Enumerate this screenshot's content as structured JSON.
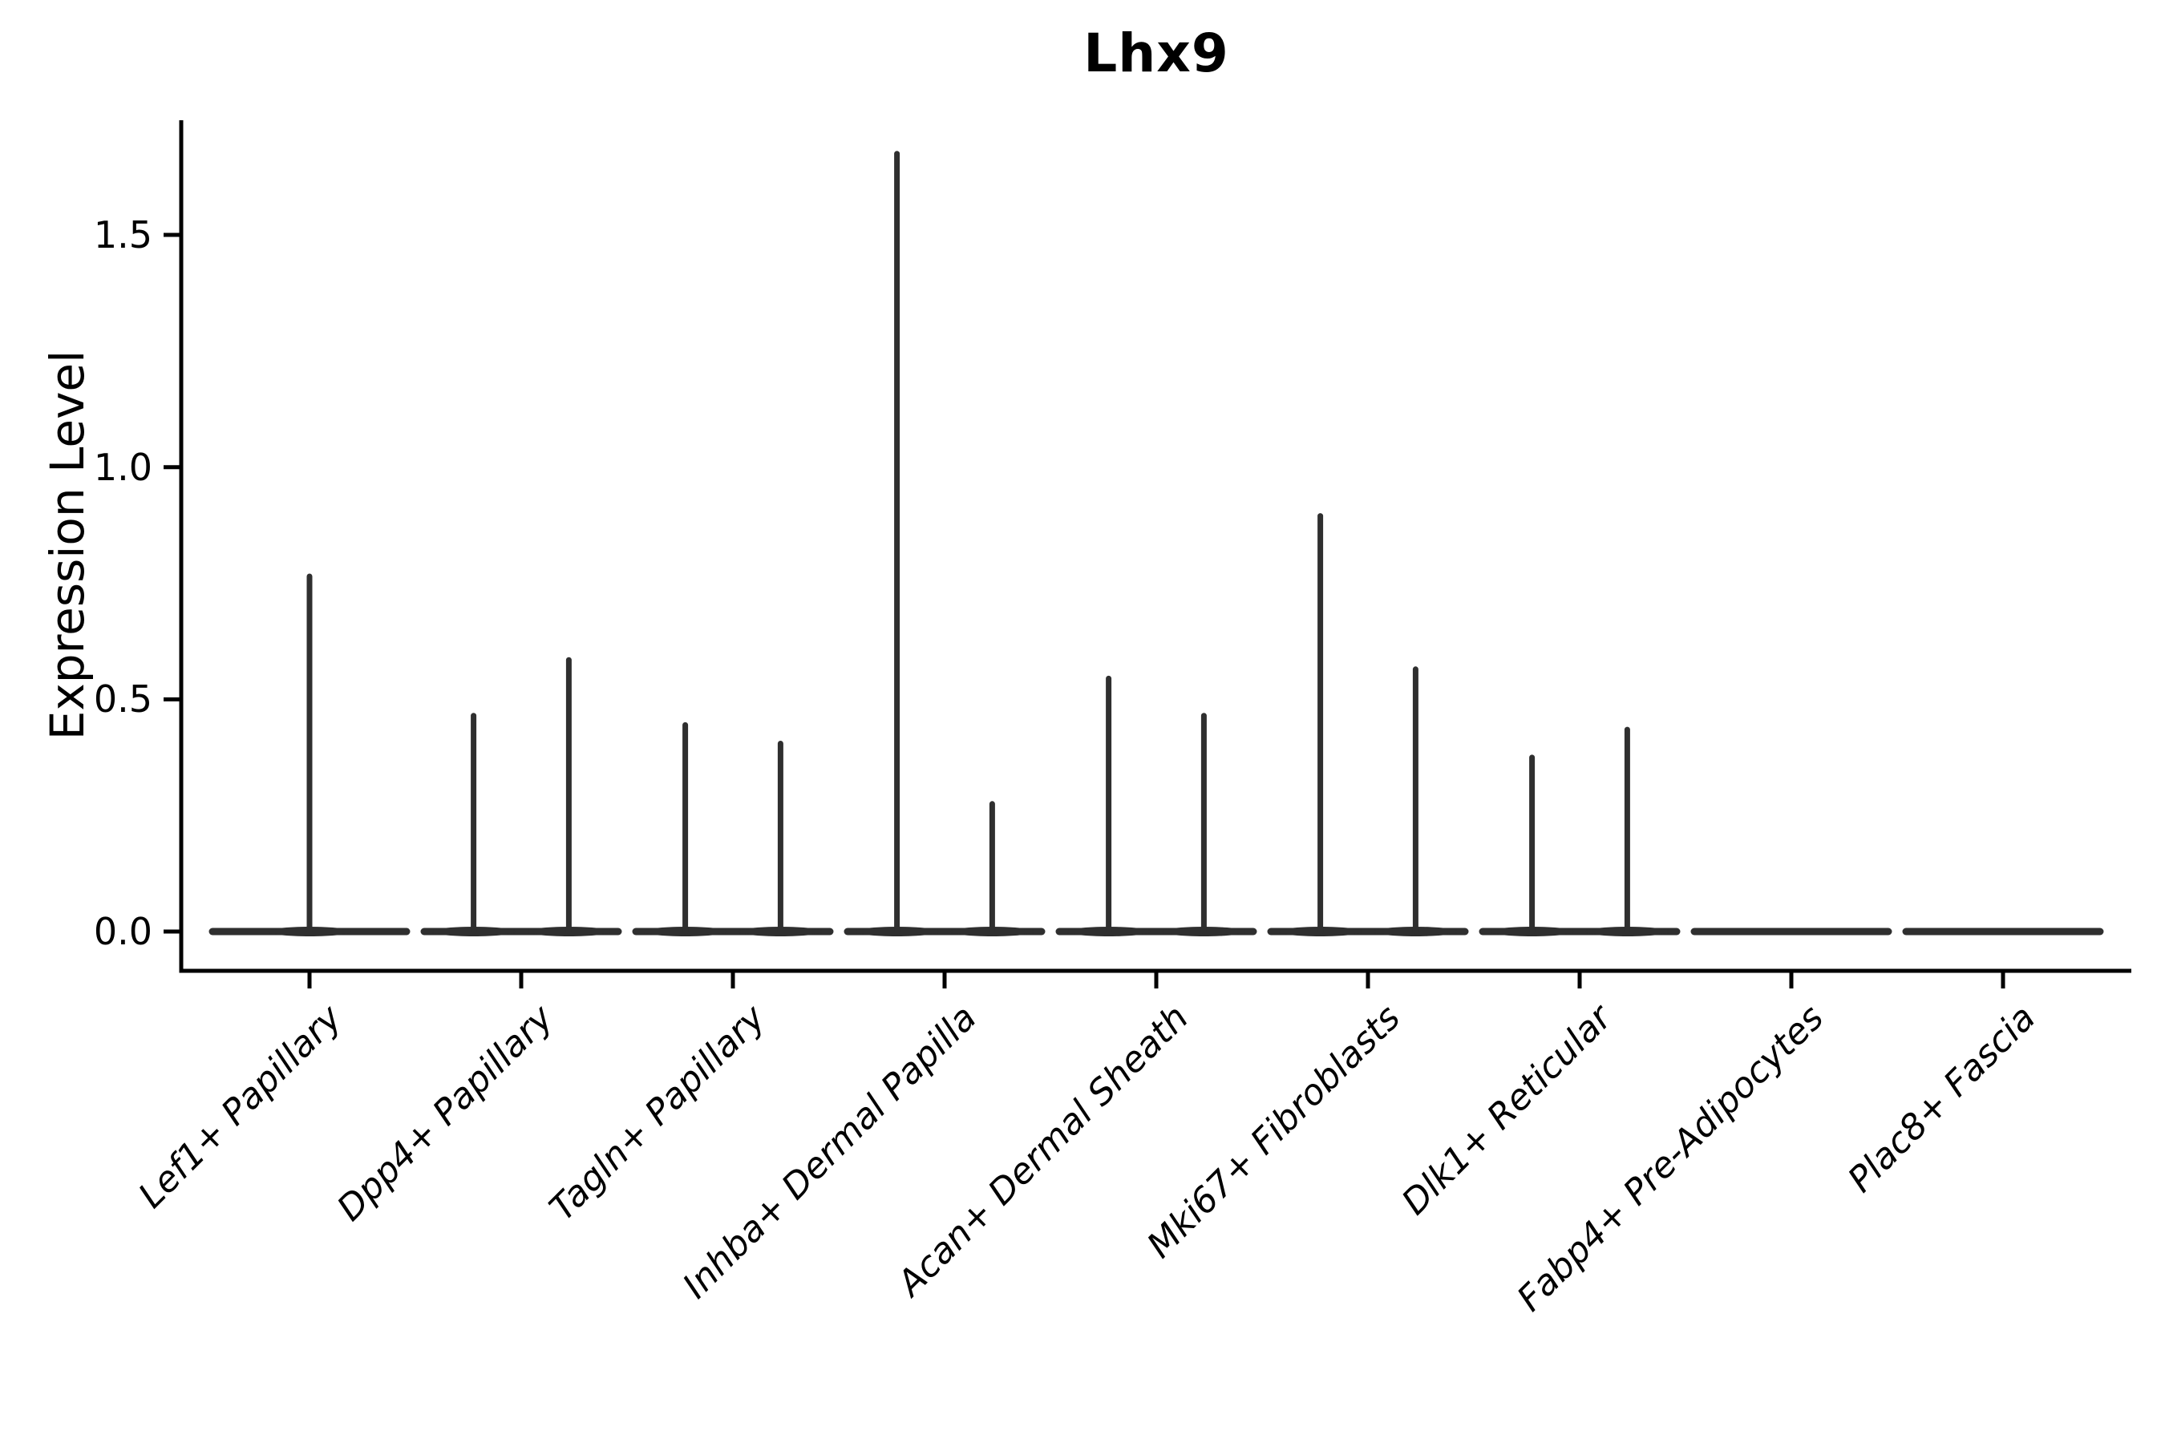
{
  "title": "Lhx9",
  "chart_data": {
    "type": "violin",
    "title": "Lhx9",
    "xlabel": "",
    "ylabel": "Expression Level",
    "yticks": [
      "0.0",
      "0.5",
      "1.0",
      "1.5"
    ],
    "ytick_values": [
      0.0,
      0.5,
      1.0,
      1.5
    ],
    "ylim": [
      -0.08,
      1.75
    ],
    "grid": false,
    "legend": null,
    "baseline_value": 0.0,
    "categories": [
      "Lef1+ Papillary",
      "Dpp4+ Papillary",
      "Tagln+ Papillary",
      "Inhba+ Dermal Papilla",
      "Acan+ Dermal Sheath",
      "Mki67+ Fibroblasts",
      "Dlk1+ Reticular",
      "Fabp4+ Pre-Adipocytes",
      "Plac8+ Fascia"
    ],
    "violins": [
      {
        "category": "Lef1+ Papillary",
        "spikes": [
          {
            "offset": 0.0,
            "max": 0.77
          }
        ]
      },
      {
        "category": "Dpp4+ Papillary",
        "spikes": [
          {
            "offset": -0.225,
            "max": 0.47
          },
          {
            "offset": 0.225,
            "max": 0.59
          }
        ]
      },
      {
        "category": "Tagln+ Papillary",
        "spikes": [
          {
            "offset": -0.225,
            "max": 0.45
          },
          {
            "offset": 0.225,
            "max": 0.41
          }
        ]
      },
      {
        "category": "Inhba+ Dermal Papilla",
        "spikes": [
          {
            "offset": -0.225,
            "max": 1.68
          },
          {
            "offset": 0.225,
            "max": 0.28
          }
        ]
      },
      {
        "category": "Acan+ Dermal Sheath",
        "spikes": [
          {
            "offset": -0.225,
            "max": 0.55
          },
          {
            "offset": 0.225,
            "max": 0.47
          }
        ]
      },
      {
        "category": "Mki67+ Fibroblasts",
        "spikes": [
          {
            "offset": -0.225,
            "max": 0.9
          },
          {
            "offset": 0.225,
            "max": 0.57
          }
        ]
      },
      {
        "category": "Dlk1+ Reticular",
        "spikes": [
          {
            "offset": -0.225,
            "max": 0.38
          },
          {
            "offset": 0.225,
            "max": 0.44
          }
        ]
      },
      {
        "category": "Fabp4+ Pre-Adipocytes",
        "spikes": []
      },
      {
        "category": "Plac8+ Fascia",
        "spikes": []
      }
    ],
    "colors": {
      "violin": "#2f2f2f",
      "axis": "#000000",
      "text": "#000000",
      "background": "#ffffff"
    }
  }
}
